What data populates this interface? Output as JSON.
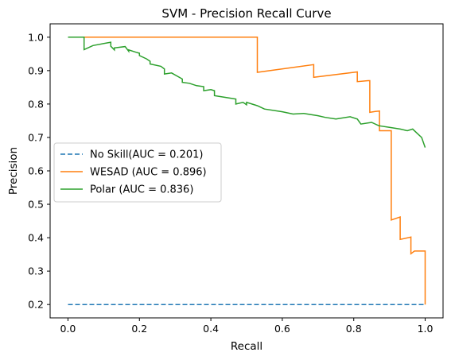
{
  "chart_data": {
    "type": "line",
    "title": "SVM - Precision Recall Curve",
    "xlabel": "Recall",
    "ylabel": "Precision",
    "xlim": [
      -0.05,
      1.05
    ],
    "ylim": [
      0.16,
      1.04
    ],
    "xticks": [
      0.0,
      0.2,
      0.4,
      0.6,
      0.8,
      1.0
    ],
    "xtick_labels": [
      "0.0",
      "0.2",
      "0.4",
      "0.6",
      "0.8",
      "1.0"
    ],
    "yticks": [
      0.2,
      0.3,
      0.4,
      0.5,
      0.6,
      0.7,
      0.8,
      0.9,
      1.0
    ],
    "ytick_labels": [
      "0.2",
      "0.3",
      "0.4",
      "0.5",
      "0.6",
      "0.7",
      "0.8",
      "0.9",
      "1.0"
    ],
    "grid": false,
    "legend_position": "center-left",
    "series": [
      {
        "name": "No Skill(AUC = 0.201)",
        "color": "#1f77b4",
        "style": "dashed",
        "x": [
          0.0,
          1.0
        ],
        "y": [
          0.2,
          0.2
        ]
      },
      {
        "name": "WESAD (AUC = 0.896)",
        "color": "#ff7f0e",
        "style": "steps",
        "x": [
          0.0,
          0.53,
          0.53,
          0.688,
          0.688,
          0.81,
          0.81,
          0.84,
          0.84,
          0.845,
          0.845,
          0.86,
          0.86,
          0.872,
          0.872,
          0.878,
          0.878,
          0.89,
          0.89,
          0.905,
          0.905,
          0.93,
          0.93,
          0.935,
          0.935,
          0.96,
          0.96,
          0.97,
          0.97,
          1.0,
          1.0
        ],
        "y": [
          1.0,
          1.0,
          0.895,
          0.918,
          0.88,
          0.896,
          0.867,
          0.87,
          0.87,
          0.87,
          0.775,
          0.778,
          0.778,
          0.779,
          0.72,
          0.72,
          0.72,
          0.72,
          0.72,
          0.72,
          0.453,
          0.462,
          0.395,
          0.396,
          0.396,
          0.402,
          0.352,
          0.36,
          0.36,
          0.36,
          0.2
        ]
      },
      {
        "name": "Polar (AUC = 0.836)",
        "color": "#2ca02c",
        "style": "steps",
        "x": [
          0.0,
          0.045,
          0.045,
          0.07,
          0.12,
          0.12,
          0.13,
          0.13,
          0.16,
          0.17,
          0.17,
          0.19,
          0.2,
          0.2,
          0.22,
          0.23,
          0.23,
          0.26,
          0.27,
          0.27,
          0.29,
          0.32,
          0.32,
          0.34,
          0.36,
          0.38,
          0.38,
          0.4,
          0.41,
          0.41,
          0.44,
          0.47,
          0.47,
          0.49,
          0.5,
          0.5,
          0.53,
          0.54,
          0.55,
          0.6,
          0.63,
          0.66,
          0.7,
          0.72,
          0.75,
          0.79,
          0.81,
          0.82,
          0.85,
          0.87,
          0.9,
          0.93,
          0.95,
          0.965,
          0.98,
          0.99,
          1.0
        ],
        "y": [
          1.0,
          1.0,
          0.963,
          0.975,
          0.985,
          0.973,
          0.962,
          0.968,
          0.972,
          0.958,
          0.962,
          0.955,
          0.952,
          0.945,
          0.935,
          0.928,
          0.92,
          0.913,
          0.905,
          0.89,
          0.893,
          0.875,
          0.865,
          0.862,
          0.855,
          0.852,
          0.84,
          0.843,
          0.84,
          0.825,
          0.82,
          0.815,
          0.8,
          0.805,
          0.798,
          0.805,
          0.795,
          0.79,
          0.785,
          0.777,
          0.77,
          0.772,
          0.765,
          0.76,
          0.755,
          0.762,
          0.755,
          0.74,
          0.745,
          0.735,
          0.73,
          0.725,
          0.72,
          0.725,
          0.71,
          0.7,
          0.67
        ]
      }
    ]
  }
}
